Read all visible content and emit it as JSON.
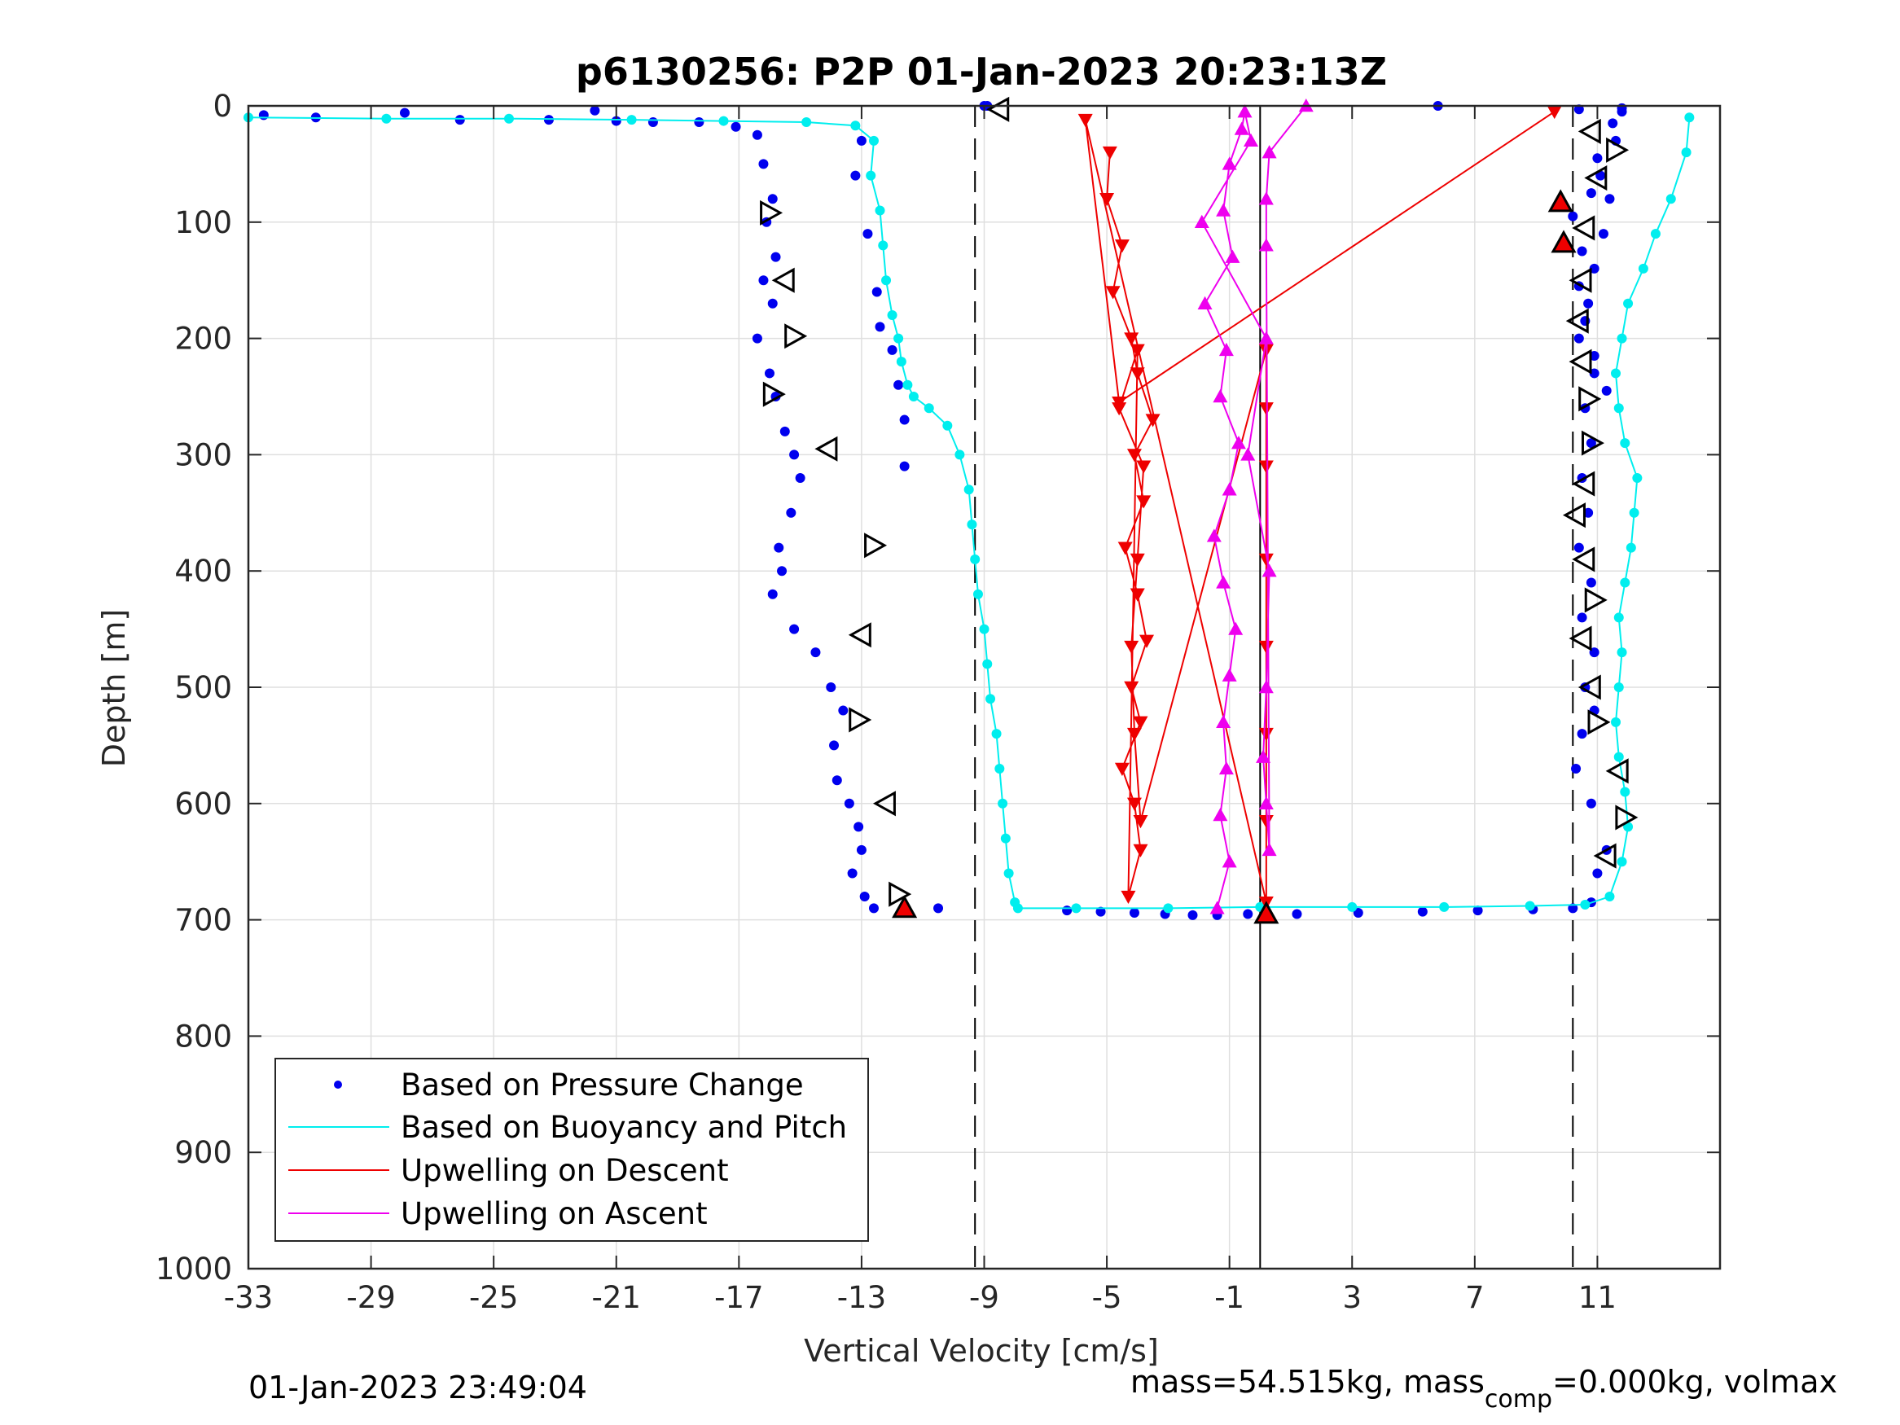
{
  "chart_data": {
    "type": "scatter",
    "title": "p6130256: P2P 01-Jan-2023 20:23:13Z",
    "xlabel": "Vertical Velocity [cm/s]",
    "ylabel": "Depth [m]",
    "xlim": [
      -33,
      15
    ],
    "ylim": [
      0,
      1000
    ],
    "y_reversed": true,
    "grid": true,
    "x_ticks": [
      "-33",
      "-29",
      "-25",
      "-21",
      "-17",
      "-13",
      "-9",
      "-5",
      "-1",
      "3",
      "7",
      "11"
    ],
    "x_tick_values": [
      -33,
      -29,
      -25,
      -21,
      -17,
      -13,
      -9,
      -5,
      -1,
      3,
      7,
      11
    ],
    "y_ticks": [
      "0",
      "100",
      "200",
      "300",
      "400",
      "500",
      "600",
      "700",
      "800",
      "900",
      "1000"
    ],
    "y_tick_values": [
      0,
      100,
      200,
      300,
      400,
      500,
      600,
      700,
      800,
      900,
      1000
    ],
    "legend_position": "bottom-left",
    "reference_lines": [
      {
        "x": -9.3,
        "style": "dashed",
        "color": "#000000"
      },
      {
        "x": 10.2,
        "style": "dashed",
        "color": "#000000"
      },
      {
        "x": 0,
        "style": "solid",
        "color": "#000000"
      }
    ],
    "series": [
      {
        "name": "Based on Pressure Change",
        "color": "#0000ee",
        "marker": "dot",
        "x": [
          -32.5,
          -30.8,
          -27.9,
          -26.1,
          -23.2,
          -21.7,
          -21.0,
          -19.8,
          -18.3,
          -17.1,
          -16.4,
          -16.2,
          -15.9,
          -16.1,
          -15.8,
          -16.2,
          -15.9,
          -16.4,
          -16.0,
          -15.8,
          -15.5,
          -15.2,
          -15.0,
          -15.3,
          -15.7,
          -15.6,
          -15.9,
          -15.2,
          -14.5,
          -14.0,
          -13.6,
          -13.9,
          -13.8,
          -13.4,
          -13.1,
          -13.0,
          -13.3,
          -12.9,
          -12.6,
          -13.0,
          -13.2,
          -12.8,
          -12.5,
          -12.4,
          -12.0,
          -11.8,
          -11.6,
          -11.6,
          -10.5,
          -6.3,
          -5.2,
          -4.1,
          -3.1,
          -2.2,
          -1.4,
          -0.4,
          1.2,
          3.2,
          5.3,
          7.1,
          8.9,
          10.2,
          10.8,
          11.0,
          11.3,
          10.8,
          10.3,
          10.5,
          10.9,
          10.6,
          10.9,
          10.5,
          10.8,
          10.4,
          10.7,
          10.5,
          10.8,
          10.6,
          10.9,
          10.4,
          10.7,
          10.9,
          11.2,
          11.4,
          11.1,
          11.6,
          11.5,
          11.8,
          11.0,
          10.8,
          10.5,
          10.2,
          10.4,
          10.6,
          10.9,
          11.3,
          -8.9,
          -9.0,
          5.8,
          10.4,
          11.8
        ],
        "y": [
          8,
          10,
          6,
          12,
          12,
          4,
          13,
          14,
          14,
          18,
          25,
          50,
          80,
          100,
          130,
          150,
          170,
          200,
          230,
          250,
          280,
          300,
          320,
          350,
          380,
          400,
          420,
          450,
          470,
          500,
          520,
          550,
          580,
          600,
          620,
          640,
          660,
          680,
          690,
          30,
          60,
          110,
          160,
          190,
          210,
          240,
          270,
          310,
          690,
          692,
          693,
          694,
          695,
          696,
          696,
          695,
          695,
          694,
          693,
          692,
          691,
          690,
          685,
          660,
          640,
          600,
          570,
          540,
          520,
          500,
          470,
          440,
          410,
          380,
          350,
          320,
          290,
          260,
          230,
          200,
          170,
          140,
          110,
          80,
          60,
          30,
          15,
          5,
          45,
          75,
          125,
          95,
          155,
          185,
          215,
          245,
          0,
          0,
          0,
          3,
          2
        ]
      },
      {
        "name": "Based on Buoyancy and Pitch",
        "color": "#00eeee",
        "marker": "line+dot",
        "x": [
          -33,
          -28.5,
          -24.5,
          -20.5,
          -17.5,
          -14.8,
          -13.2,
          -12.6,
          -12.7,
          -12.4,
          -12.3,
          -12.2,
          -12.0,
          -11.8,
          -11.7,
          -11.5,
          -11.3,
          -10.8,
          -10.2,
          -9.8,
          -9.5,
          -9.4,
          -9.3,
          -9.2,
          -9.0,
          -8.9,
          -8.8,
          -8.6,
          -8.5,
          -8.4,
          -8.3,
          -8.2,
          -8.0,
          -7.9,
          -6.0,
          -3.0,
          0.0,
          3.0,
          6.0,
          8.8,
          10.6,
          11.4,
          11.8,
          12.0,
          11.9,
          11.7,
          11.6,
          11.7,
          11.8,
          11.7,
          11.9,
          12.1,
          12.2,
          12.3,
          11.9,
          11.7,
          11.6,
          11.8,
          12.0,
          12.5,
          12.9,
          13.4,
          13.9,
          14.0
        ],
        "y": [
          10,
          11,
          11,
          12,
          13,
          14,
          17,
          30,
          60,
          90,
          120,
          150,
          180,
          200,
          220,
          240,
          250,
          260,
          275,
          300,
          330,
          360,
          390,
          420,
          450,
          480,
          510,
          540,
          570,
          600,
          630,
          660,
          685,
          690,
          690,
          690,
          689,
          689,
          689,
          688,
          687,
          680,
          650,
          620,
          590,
          560,
          530,
          500,
          470,
          440,
          410,
          380,
          350,
          320,
          290,
          260,
          230,
          200,
          170,
          140,
          110,
          80,
          40,
          10
        ]
      },
      {
        "name": "Upwelling on Descent",
        "color": "#ee0000",
        "marker": "line+triangle-down",
        "x": [
          -4.9,
          -5.0,
          -4.5,
          -4.8,
          -4.2,
          -4.0,
          -3.5,
          -4.1,
          -3.8,
          -4.4,
          -4.0,
          -3.7,
          -4.2,
          -3.9,
          -4.5,
          -4.1,
          -3.9,
          -4.3,
          -4.0,
          -4.6,
          -3.8,
          -4.0,
          -4.2,
          -4.1,
          -3.9,
          0.2,
          0.2,
          0.2,
          0.2,
          0.2,
          0.2,
          0.2,
          0.2,
          -5.7,
          -4.6,
          9.6
        ],
        "y": [
          40,
          80,
          120,
          160,
          200,
          230,
          270,
          300,
          340,
          380,
          420,
          460,
          500,
          530,
          570,
          600,
          640,
          680,
          210,
          260,
          310,
          390,
          465,
          540,
          615,
          210,
          260,
          310,
          390,
          465,
          540,
          615,
          685,
          12,
          255,
          5
        ]
      },
      {
        "name": "Upwelling on Ascent",
        "color": "#ee00ee",
        "marker": "line+triangle-up",
        "x": [
          -1.4,
          -1.0,
          -1.3,
          -1.1,
          -1.2,
          -1.0,
          -0.8,
          -1.2,
          -1.5,
          -1.0,
          -0.7,
          -1.3,
          -1.1,
          -1.8,
          -0.9,
          -1.2,
          -1.0,
          -0.6,
          -0.5,
          -0.3,
          -1.9,
          0.2,
          -0.4,
          0.3,
          0.2,
          0.1,
          0.2,
          0.3,
          0.2,
          0.2,
          0.3,
          1.5
        ],
        "y": [
          690,
          650,
          610,
          570,
          530,
          490,
          450,
          410,
          370,
          330,
          290,
          250,
          210,
          170,
          130,
          90,
          50,
          20,
          5,
          30,
          100,
          200,
          300,
          400,
          500,
          560,
          600,
          640,
          120,
          80,
          40,
          0
        ]
      }
    ],
    "triangle_markers": [
      {
        "x": -8.5,
        "y": 3,
        "dir": "left"
      },
      {
        "x": -16.0,
        "y": 92,
        "dir": "right"
      },
      {
        "x": -15.5,
        "y": 150,
        "dir": "left"
      },
      {
        "x": -15.2,
        "y": 198,
        "dir": "right"
      },
      {
        "x": -15.9,
        "y": 248,
        "dir": "right"
      },
      {
        "x": -14.1,
        "y": 295,
        "dir": "left"
      },
      {
        "x": -12.6,
        "y": 378,
        "dir": "right"
      },
      {
        "x": -13.0,
        "y": 455,
        "dir": "left"
      },
      {
        "x": -13.1,
        "y": 528,
        "dir": "right"
      },
      {
        "x": -12.2,
        "y": 600,
        "dir": "left"
      },
      {
        "x": -11.8,
        "y": 678,
        "dir": "right"
      },
      {
        "x": -11.6,
        "y": 690,
        "dir": "up",
        "fill": "#ee0000"
      },
      {
        "x": 0.2,
        "y": 695,
        "dir": "up",
        "fill": "#ee0000"
      },
      {
        "x": 9.8,
        "y": 83,
        "dir": "up",
        "fill": "#ee0000"
      },
      {
        "x": 9.9,
        "y": 118,
        "dir": "up",
        "fill": "#ee0000"
      },
      {
        "x": 10.8,
        "y": 22,
        "dir": "left"
      },
      {
        "x": 11.6,
        "y": 38,
        "dir": "right"
      },
      {
        "x": 11.0,
        "y": 62,
        "dir": "left"
      },
      {
        "x": 10.6,
        "y": 105,
        "dir": "left"
      },
      {
        "x": 10.5,
        "y": 150,
        "dir": "left"
      },
      {
        "x": 10.4,
        "y": 185,
        "dir": "left"
      },
      {
        "x": 10.5,
        "y": 220,
        "dir": "left"
      },
      {
        "x": 10.7,
        "y": 252,
        "dir": "right"
      },
      {
        "x": 10.8,
        "y": 290,
        "dir": "right"
      },
      {
        "x": 10.6,
        "y": 325,
        "dir": "left"
      },
      {
        "x": 10.3,
        "y": 352,
        "dir": "left"
      },
      {
        "x": 10.6,
        "y": 390,
        "dir": "left"
      },
      {
        "x": 10.9,
        "y": 425,
        "dir": "right"
      },
      {
        "x": 10.5,
        "y": 458,
        "dir": "left"
      },
      {
        "x": 10.8,
        "y": 500,
        "dir": "left"
      },
      {
        "x": 11.0,
        "y": 530,
        "dir": "right"
      },
      {
        "x": 11.7,
        "y": 572,
        "dir": "left"
      },
      {
        "x": 11.9,
        "y": 612,
        "dir": "right"
      },
      {
        "x": 11.3,
        "y": 645,
        "dir": "left"
      }
    ]
  },
  "footer": {
    "timestamp": "01-Jan-2023 23:49:04",
    "mass_text": "mass=54.515kg, mass",
    "mass_sub": "comp",
    "mass_rest": "=0.000kg, volmax"
  }
}
